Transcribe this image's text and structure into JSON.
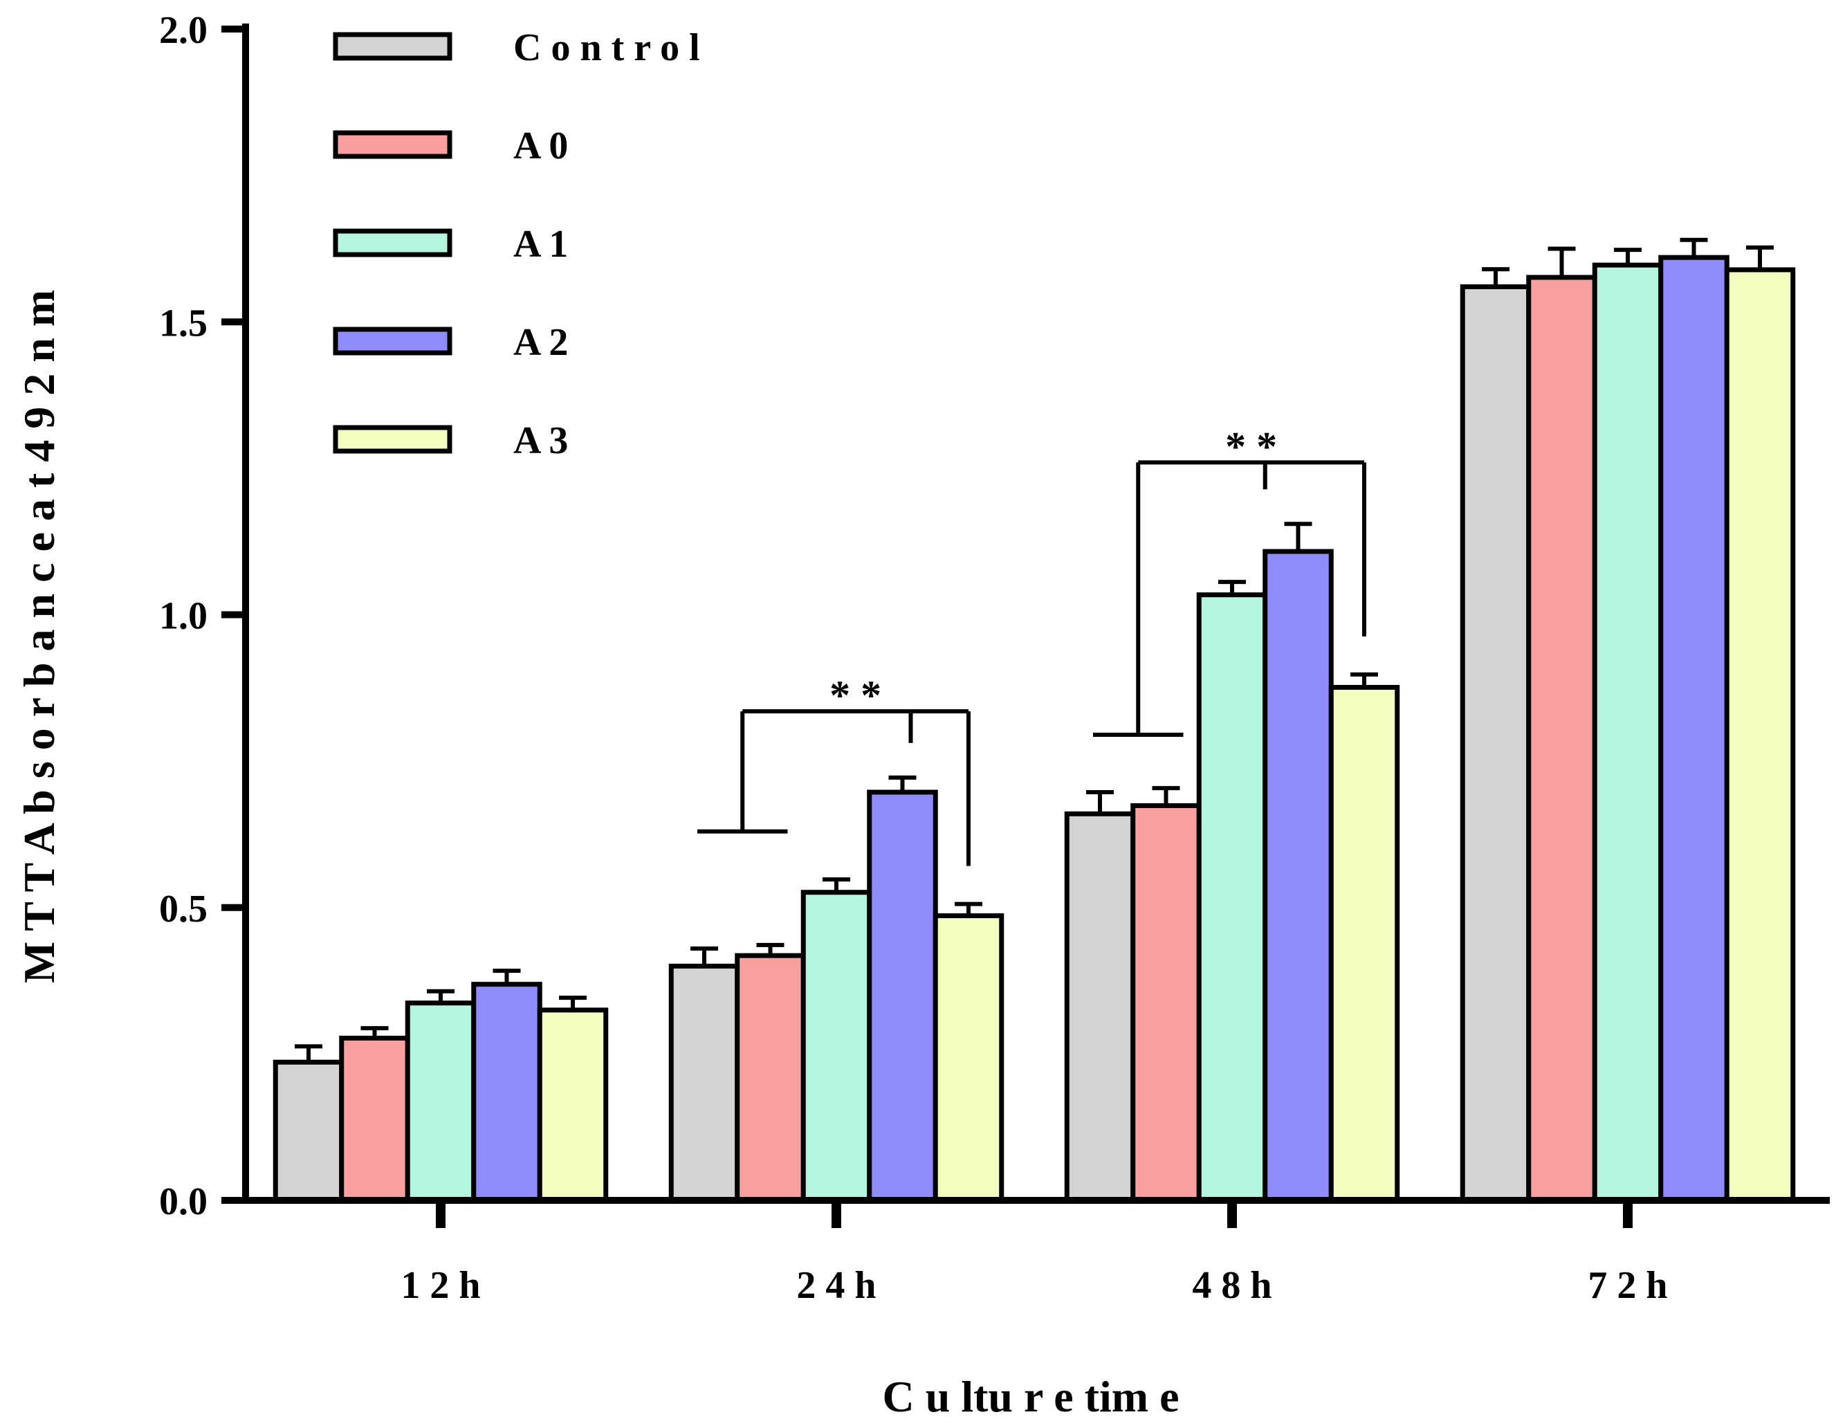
{
  "chart_data": {
    "type": "bar",
    "title": "",
    "xlabel": "C u ltu r e  tim e",
    "ylabel": "M T T  A b s o r b a n c e  a t  4 9 2 n m",
    "ylim": [
      0,
      2.0
    ],
    "yticks": [
      0.0,
      0.5,
      1.0,
      1.5,
      2.0
    ],
    "ytick_labels": [
      "0.0",
      "0.5",
      "1.0",
      "1.5",
      "2.0"
    ],
    "categories": [
      "1 2 h",
      "2 4 h",
      "4 8 h",
      "7 2 h"
    ],
    "grid": false,
    "legend_position": "top-left",
    "series": [
      {
        "name": "C o n t r o l",
        "color": "#d3d3d3",
        "values": [
          0.236,
          0.4,
          0.66,
          1.56
        ],
        "errors": [
          0.027,
          0.03,
          0.037,
          0.03
        ]
      },
      {
        "name": "A 0",
        "color": "#fa9f9f",
        "values": [
          0.277,
          0.418,
          0.674,
          1.576
        ],
        "errors": [
          0.017,
          0.018,
          0.03,
          0.049
        ]
      },
      {
        "name": "A 1",
        "color": "#b3f5dd",
        "values": [
          0.337,
          0.526,
          1.034,
          1.597
        ],
        "errors": [
          0.02,
          0.022,
          0.022,
          0.026
        ]
      },
      {
        "name": "A 2",
        "color": "#8e8cfb",
        "values": [
          0.369,
          0.697,
          1.108,
          1.61
        ],
        "errors": [
          0.023,
          0.025,
          0.047,
          0.03
        ]
      },
      {
        "name": "A 3",
        "color": "#f4fdc0",
        "values": [
          0.325,
          0.486,
          0.876,
          1.589
        ],
        "errors": [
          0.021,
          0.02,
          0.022,
          0.038
        ]
      }
    ],
    "annotations": [
      {
        "label": "* *",
        "category": "2 4 h",
        "left_series": [
          "C o n t r o l",
          "A 0"
        ],
        "right_series": [
          "A 2",
          "A 3"
        ],
        "base_level": 0.63,
        "bracket_level": 0.835
      },
      {
        "label": "* *",
        "category": "4 8 h",
        "left_series": [
          "C o n t r o l",
          "A 0"
        ],
        "right_series": [
          "A 1",
          "A 2",
          "A 3"
        ],
        "base_level": 0.795,
        "bracket_level": 1.26
      }
    ]
  }
}
